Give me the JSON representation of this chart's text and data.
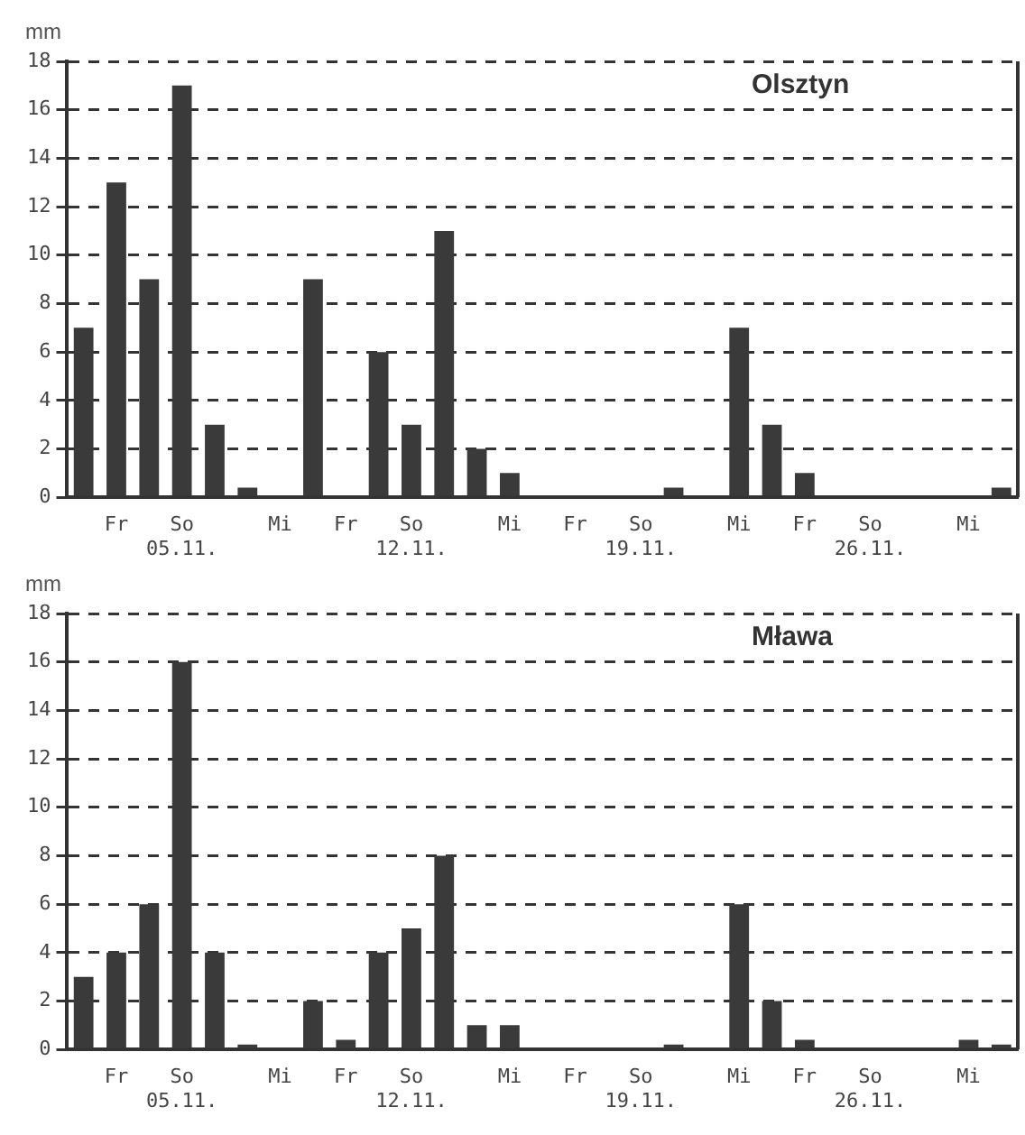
{
  "chart_data": [
    {
      "type": "bar",
      "title": "Olsztyn",
      "ylabel": "mm",
      "categories": [
        null,
        "Fr",
        null,
        "So\n05.11.",
        null,
        null,
        "Mi",
        null,
        "Fr",
        null,
        "So\n12.11.",
        null,
        null,
        "Mi",
        null,
        "Fr",
        null,
        "So\n19.11.",
        null,
        null,
        "Mi",
        null,
        "Fr",
        null,
        "So\n26.11.",
        null,
        null,
        "Mi",
        null
      ],
      "values": [
        7,
        13,
        9,
        17,
        3,
        0.4,
        0,
        9,
        0,
        6,
        3,
        11,
        2,
        1,
        0,
        0,
        0,
        0,
        0.4,
        0,
        7,
        3,
        1,
        0,
        0,
        0,
        0,
        0,
        0.4
      ],
      "color": "#3a3a3a",
      "ylim": [
        0,
        18
      ],
      "yticks": [
        0,
        2,
        4,
        6,
        8,
        10,
        12,
        14,
        16,
        18
      ],
      "grid": "y"
    },
    {
      "type": "bar",
      "title": "Mława",
      "ylabel": "mm",
      "categories": [
        null,
        "Fr",
        null,
        "So\n05.11.",
        null,
        null,
        "Mi",
        null,
        "Fr",
        null,
        "So\n12.11.",
        null,
        null,
        "Mi",
        null,
        "Fr",
        null,
        "So\n19.11.",
        null,
        null,
        "Mi",
        null,
        "Fr",
        null,
        "So\n26.11.",
        null,
        null,
        "Mi",
        null
      ],
      "values": [
        3,
        4,
        6,
        16,
        4,
        0.2,
        0,
        2,
        0.4,
        4,
        5,
        8,
        1,
        1,
        0,
        0,
        0,
        0,
        0.2,
        0,
        6,
        2,
        0.4,
        0,
        0,
        0,
        0,
        0.4,
        0.2
      ],
      "color": "#3a3a3a",
      "ylim": [
        0,
        18
      ],
      "yticks": [
        0,
        2,
        4,
        6,
        8,
        10,
        12,
        14,
        16,
        18
      ],
      "grid": "y"
    }
  ]
}
